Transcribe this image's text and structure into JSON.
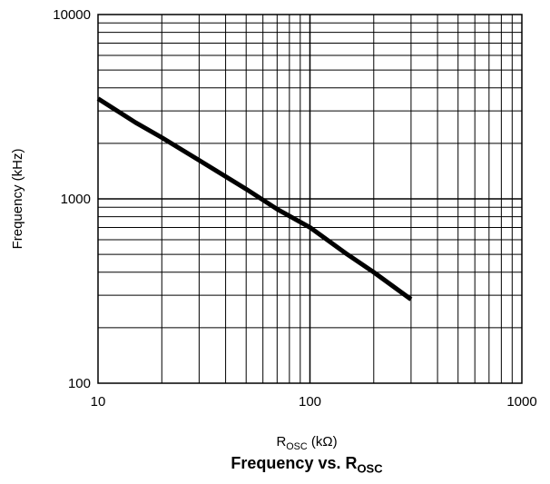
{
  "chart_data": {
    "type": "line",
    "title": {
      "main": "Frequency vs. R",
      "sub": "OSC"
    },
    "xlabel": {
      "main": "R",
      "sub": "OSC",
      "unit": " (kΩ)"
    },
    "ylabel": "Frequency (kHz)",
    "x_scale": "log",
    "y_scale": "log",
    "xlim": [
      10,
      1000
    ],
    "ylim": [
      100,
      10000
    ],
    "x_ticks": [
      "10",
      "100",
      "1000"
    ],
    "y_ticks": [
      "10000",
      "1000",
      "100"
    ],
    "grid": true,
    "series": [
      {
        "x": [
          10,
          15,
          20,
          30,
          50,
          70,
          100,
          150,
          200,
          300
        ],
        "y": [
          3500,
          2600,
          2150,
          1620,
          1130,
          880,
          700,
          500,
          400,
          285
        ]
      }
    ]
  }
}
